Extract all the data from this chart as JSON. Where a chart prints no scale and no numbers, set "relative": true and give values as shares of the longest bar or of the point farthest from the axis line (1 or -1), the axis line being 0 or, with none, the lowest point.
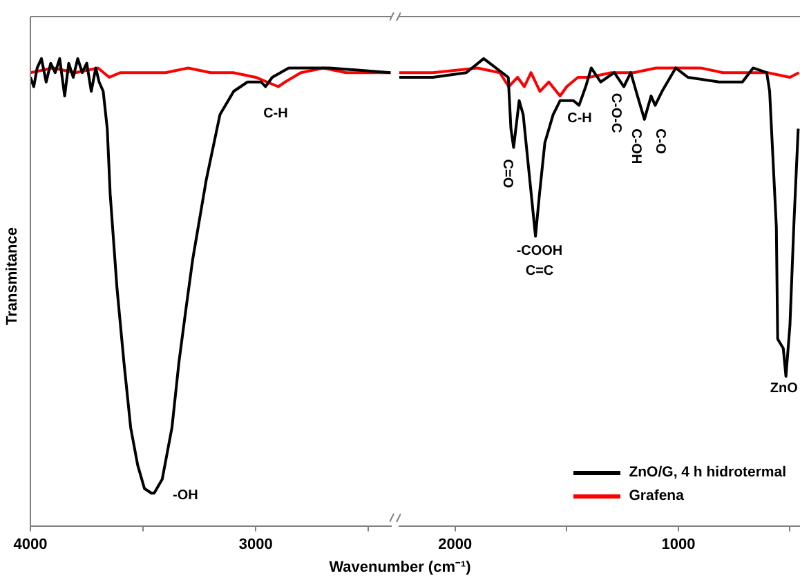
{
  "chart_data": [
    {
      "type": "line",
      "relative": true,
      "ylabel": "Transmitance",
      "xlim": [
        4000,
        2400
      ],
      "xticks": [
        4000,
        {
          "value": 3500,
          "label": null
        },
        3000,
        {
          "value": 2500,
          "label": null
        }
      ],
      "tick_labels": "x",
      "grid": false,
      "marker": "none",
      "series": [
        {
          "color": "#000000",
          "x": [
            4000,
            3985,
            3970,
            3951,
            3930,
            3910,
            3890,
            3870,
            3848,
            3830,
            3810,
            3790,
            3770,
            3750,
            3730,
            3710,
            3695,
            3677,
            3659,
            3646,
            3616,
            3585,
            3555,
            3524,
            3494,
            3463,
            3451,
            3415,
            3372,
            3341,
            3311,
            3280,
            3220,
            3159,
            3098,
            3037,
            2976,
            2957,
            2927,
            2854,
            2671,
            2402
          ],
          "values": [
            0.96,
            0.94,
            0.98,
            1.0,
            0.95,
            0.99,
            0.97,
            1.0,
            0.92,
            0.99,
            0.96,
            1.0,
            0.97,
            0.99,
            0.93,
            0.98,
            0.95,
            0.93,
            0.85,
            0.71,
            0.51,
            0.35,
            0.21,
            0.13,
            0.08,
            0.07,
            0.07,
            0.1,
            0.21,
            0.35,
            0.46,
            0.57,
            0.74,
            0.88,
            0.93,
            0.95,
            0.95,
            0.94,
            0.96,
            0.98,
            0.98,
            0.97
          ]
        },
        {
          "color": "#ff0000",
          "x": [
            4000,
            3900,
            3800,
            3700,
            3650,
            3600,
            3500,
            3400,
            3300,
            3200,
            3100,
            3000,
            2950,
            2900,
            2870,
            2800,
            2700,
            2600,
            2402
          ],
          "values": [
            0.97,
            0.98,
            0.97,
            0.98,
            0.96,
            0.97,
            0.97,
            0.97,
            0.98,
            0.97,
            0.97,
            0.96,
            0.95,
            0.94,
            0.95,
            0.97,
            0.98,
            0.97,
            0.97
          ]
        }
      ],
      "annotations": [
        "-OH",
        "C-H"
      ]
    },
    {
      "type": "line",
      "relative": true,
      "xlabel": "Wavenumber (cm⁻¹)",
      "xlim": [
        2250,
        455
      ],
      "xticks": [
        2000,
        {
          "value": 1500,
          "label": null
        },
        1000,
        {
          "value": 500,
          "label": null
        }
      ],
      "tick_labels": "x",
      "grid": false,
      "marker": "none",
      "legend": "bottom right",
      "series": [
        {
          "name": "ZnO/G, 4 h hidrotermal",
          "color": "#000000",
          "x": [
            2250,
            2100,
            1950,
            1872,
            1762,
            1750,
            1738,
            1713,
            1695,
            1659,
            1640,
            1622,
            1598,
            1561,
            1530,
            1470,
            1445,
            1415,
            1390,
            1348,
            1287,
            1244,
            1213,
            1183,
            1152,
            1122,
            1104,
            1073,
            1012,
            957,
            817,
            713,
            665,
            604,
            591,
            561,
            555,
            530,
            518,
            500,
            482,
            463
          ],
          "values": [
            0.96,
            0.96,
            0.97,
            1.0,
            0.96,
            0.85,
            0.81,
            0.91,
            0.88,
            0.71,
            0.62,
            0.71,
            0.82,
            0.88,
            0.91,
            0.91,
            0.9,
            0.94,
            0.98,
            0.95,
            0.97,
            0.94,
            0.97,
            0.92,
            0.87,
            0.92,
            0.9,
            0.93,
            0.98,
            0.96,
            0.95,
            0.95,
            0.98,
            0.97,
            0.93,
            0.64,
            0.4,
            0.38,
            0.32,
            0.43,
            0.65,
            0.85
          ]
        },
        {
          "name": "Grafena",
          "color": "#ff0000",
          "x": [
            2250,
            2100,
            1900,
            1800,
            1760,
            1720,
            1690,
            1660,
            1620,
            1580,
            1530,
            1500,
            1450,
            1400,
            1300,
            1200,
            1100,
            1000,
            900,
            800,
            700,
            600,
            500,
            460
          ],
          "values": [
            0.97,
            0.97,
            0.98,
            0.97,
            0.94,
            0.96,
            0.94,
            0.97,
            0.93,
            0.95,
            0.92,
            0.94,
            0.96,
            0.96,
            0.97,
            0.97,
            0.98,
            0.98,
            0.98,
            0.97,
            0.97,
            0.97,
            0.96,
            0.97
          ]
        }
      ],
      "annotations": [
        "C=O",
        "-COOH",
        "C=C",
        "C-H",
        "C-O-C",
        "C-OH",
        "C-O",
        "ZnO"
      ]
    }
  ]
}
